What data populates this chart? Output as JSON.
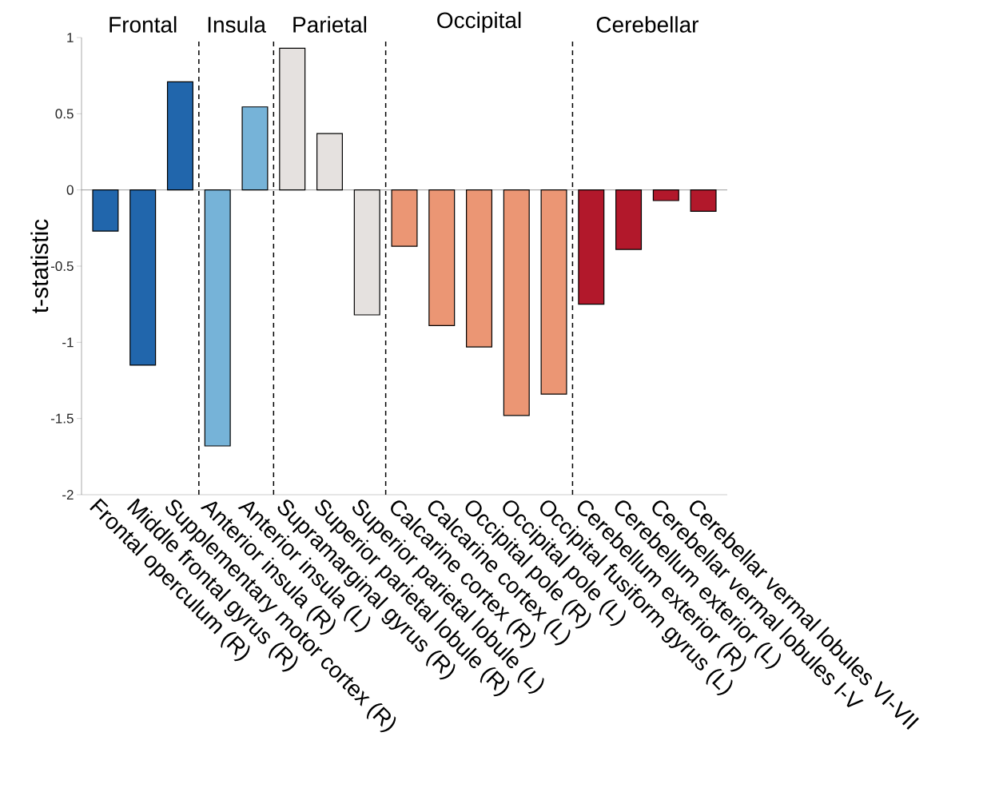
{
  "chart_data": {
    "type": "bar",
    "ylabel": "t-statistic",
    "categories": [
      "Frontal operculum (R)",
      "Middle frontal gyrus (R)",
      "Supplementary motor cortex (R)",
      "Anterior insula (R)",
      "Anterior insula (L)",
      "Supramarginal gyrus (R)",
      "Superior parietal lobule (R)",
      "Superior parietal lobule (L)",
      "Calcarine cortex (R)",
      "Calcarine cortex (L)",
      "Occipital pole (R)",
      "Occipital pole (L)",
      "Occipital fusiform gyrus (L)",
      "Cerebellum exterior (R)",
      "Cerebellum exterior (L)",
      "Cerebellar vermal lobules I-V",
      "Cerebellar vermal lobules VI-VII"
    ],
    "values": [
      -0.27,
      -1.15,
      0.71,
      -1.68,
      0.545,
      0.93,
      0.37,
      -0.82,
      -0.37,
      -0.89,
      -1.03,
      -1.48,
      -1.34,
      -0.75,
      -0.39,
      -0.07,
      -0.14
    ],
    "colors": [
      "#2166ac",
      "#2166ac",
      "#2166ac",
      "#76b3d8",
      "#76b3d8",
      "#e5e1df",
      "#e5e1df",
      "#e5e1df",
      "#eb9674",
      "#eb9674",
      "#eb9674",
      "#eb9674",
      "#eb9674",
      "#b2182b",
      "#b2182b",
      "#b2182b",
      "#b2182b"
    ],
    "ylim": [
      -2,
      1
    ],
    "yticks": [
      -2,
      -1.5,
      -1,
      -0.5,
      0,
      0.5,
      1
    ],
    "annotations": [
      "Frontal",
      "Insula",
      "Parietal",
      "Occipital",
      "Cerebellar"
    ]
  }
}
